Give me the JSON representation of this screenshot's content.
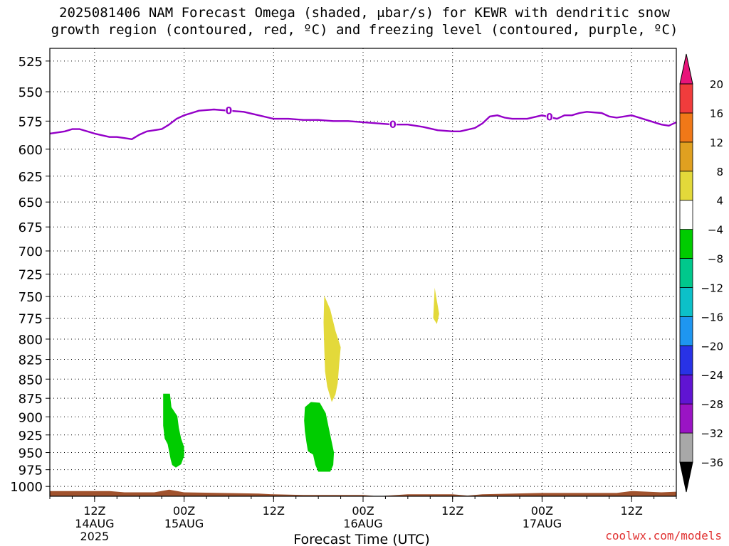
{
  "title": {
    "line1": "2025081406 NAM Forecast Omega (shaded, μbar/s) for KEWR with dendritic snow",
    "line2": "growth region (contoured, red, ºC) and freezing level (contoured, purple, ºC)"
  },
  "credit": "coolwx.com/models",
  "chart_data": {
    "type": "time-height",
    "xlabel": "Forecast Time (UTC)",
    "ylabel": "",
    "x_unit": "hours since 2025-08-14 06Z",
    "xlim": [
      0,
      84
    ],
    "ylim_hpa": [
      515,
      1015
    ],
    "log_pressure": true,
    "grid": true,
    "y_ticks": [
      525,
      550,
      575,
      600,
      625,
      650,
      675,
      700,
      725,
      750,
      775,
      800,
      825,
      850,
      875,
      900,
      925,
      950,
      975,
      1000
    ],
    "x_ticks": [
      {
        "hour": 6,
        "label": "12Z",
        "sub1": "14AUG",
        "sub2": "2025"
      },
      {
        "hour": 18,
        "label": "00Z",
        "sub1": "15AUG",
        "sub2": ""
      },
      {
        "hour": 30,
        "label": "12Z",
        "sub1": "",
        "sub2": ""
      },
      {
        "hour": 42,
        "label": "00Z",
        "sub1": "16AUG",
        "sub2": ""
      },
      {
        "hour": 54,
        "label": "12Z",
        "sub1": "",
        "sub2": ""
      },
      {
        "hour": 66,
        "label": "00Z",
        "sub1": "17AUG",
        "sub2": ""
      },
      {
        "hour": 78,
        "label": "12Z",
        "sub1": "",
        "sub2": ""
      }
    ],
    "freezing_level": {
      "color": "#9400c8",
      "label": "0",
      "label_hours": [
        24,
        46,
        67
      ],
      "points": [
        [
          0,
          586
        ],
        [
          2,
          584
        ],
        [
          3,
          582
        ],
        [
          4,
          582
        ],
        [
          6,
          586
        ],
        [
          8,
          589
        ],
        [
          9,
          589
        ],
        [
          10,
          590
        ],
        [
          11,
          591
        ],
        [
          12,
          587
        ],
        [
          13,
          584
        ],
        [
          14,
          583
        ],
        [
          15,
          582
        ],
        [
          16,
          578
        ],
        [
          17,
          573
        ],
        [
          18,
          570
        ],
        [
          19,
          568
        ],
        [
          20,
          566
        ],
        [
          22,
          565
        ],
        [
          24,
          566
        ],
        [
          26,
          567
        ],
        [
          28,
          570
        ],
        [
          30,
          573
        ],
        [
          32,
          573
        ],
        [
          34,
          574
        ],
        [
          36,
          574
        ],
        [
          38,
          575
        ],
        [
          40,
          575
        ],
        [
          42,
          576
        ],
        [
          44,
          577
        ],
        [
          46,
          578
        ],
        [
          48,
          578
        ],
        [
          50,
          580
        ],
        [
          52,
          583
        ],
        [
          54,
          584
        ],
        [
          55,
          584
        ],
        [
          57,
          581
        ],
        [
          58,
          577
        ],
        [
          59,
          571
        ],
        [
          60,
          570
        ],
        [
          61,
          572
        ],
        [
          62,
          573
        ],
        [
          64,
          573
        ],
        [
          66,
          570
        ],
        [
          68,
          573
        ],
        [
          69,
          570
        ],
        [
          70,
          570
        ],
        [
          71,
          568
        ],
        [
          72,
          567
        ],
        [
          74,
          568
        ],
        [
          75,
          571
        ],
        [
          76,
          572
        ],
        [
          78,
          570
        ],
        [
          80,
          574
        ],
        [
          82,
          578
        ],
        [
          83,
          579
        ],
        [
          84,
          576
        ]
      ]
    },
    "omega_regions": [
      {
        "value_range": [
          -8,
          -4
        ],
        "color": "#00cc00",
        "points": [
          [
            15.2,
            869
          ],
          [
            16.1,
            869
          ],
          [
            16.3,
            887
          ],
          [
            17.1,
            899
          ],
          [
            17.3,
            915
          ],
          [
            17.6,
            930
          ],
          [
            18.0,
            942
          ],
          [
            18.0,
            955
          ],
          [
            17.6,
            967
          ],
          [
            16.9,
            972
          ],
          [
            16.4,
            968
          ],
          [
            16.2,
            960
          ],
          [
            15.8,
            938
          ],
          [
            15.4,
            930
          ],
          [
            15.2,
            912
          ]
        ]
      },
      {
        "value_range": [
          -8,
          -4
        ],
        "color": "#00cc00",
        "points": [
          [
            34.2,
            887
          ],
          [
            35.0,
            880
          ],
          [
            36.2,
            881
          ],
          [
            37.0,
            895
          ],
          [
            37.4,
            915
          ],
          [
            37.8,
            935
          ],
          [
            38.1,
            950
          ],
          [
            38.0,
            968
          ],
          [
            37.6,
            978
          ],
          [
            36.0,
            978
          ],
          [
            35.6,
            968
          ],
          [
            35.3,
            953
          ],
          [
            34.6,
            948
          ],
          [
            34.4,
            935
          ],
          [
            34.2,
            920
          ],
          [
            34.1,
            905
          ]
        ]
      },
      {
        "value_range": [
          4,
          8
        ],
        "color": "#e3d93a",
        "points": [
          [
            36.8,
            749
          ],
          [
            37.6,
            765
          ],
          [
            38.3,
            790
          ],
          [
            39.0,
            810
          ],
          [
            38.8,
            830
          ],
          [
            38.6,
            855
          ],
          [
            38.3,
            870
          ],
          [
            37.8,
            880
          ],
          [
            37.2,
            860
          ],
          [
            36.9,
            840
          ],
          [
            36.8,
            812
          ],
          [
            36.7,
            780
          ]
        ]
      },
      {
        "value_range": [
          4,
          8
        ],
        "color": "#e3d93a",
        "points": [
          [
            51.6,
            740
          ],
          [
            51.9,
            755
          ],
          [
            52.2,
            770
          ],
          [
            51.9,
            782
          ],
          [
            51.4,
            775
          ],
          [
            51.5,
            758
          ]
        ]
      }
    ],
    "terrain": {
      "color": "#a0522d",
      "surface_hpa": [
        [
          0,
          1007
        ],
        [
          8,
          1007
        ],
        [
          10,
          1009
        ],
        [
          14,
          1009
        ],
        [
          16,
          1005
        ],
        [
          18,
          1009
        ],
        [
          28,
          1011
        ],
        [
          30,
          1012
        ],
        [
          34,
          1013
        ],
        [
          42,
          1013
        ],
        [
          44,
          1015
        ],
        [
          48,
          1012
        ],
        [
          54,
          1012
        ],
        [
          56,
          1014
        ],
        [
          58,
          1012
        ],
        [
          66,
          1010
        ],
        [
          76,
          1010
        ],
        [
          78,
          1007
        ],
        [
          82,
          1009
        ],
        [
          84,
          1008
        ]
      ]
    },
    "colorbar": {
      "levels": [
        -36,
        -32,
        -28,
        -24,
        -20,
        -16,
        -12,
        -8,
        -4,
        4,
        8,
        12,
        16,
        20
      ],
      "colors": [
        "#000000",
        "#a8a8a8",
        "#9a14c4",
        "#6014d2",
        "#2832e6",
        "#1e96f0",
        "#0cc0c8",
        "#00c88c",
        "#00cc00",
        "#ffffff",
        "#e3d93a",
        "#e0a020",
        "#f07818",
        "#f03c3c",
        "#e8147a"
      ]
    }
  }
}
